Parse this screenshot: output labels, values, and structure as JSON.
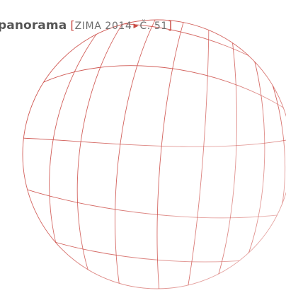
{
  "header": {
    "title": "panorama",
    "open_bracket": "[",
    "issue_season": "ZIMA 2014",
    "separator_icon": "triangle-right-icon",
    "issue_number": "Č. 51",
    "close_bracket": "]"
  },
  "colors": {
    "title": "#555555",
    "issue_text": "#6d6d6d",
    "accent": "#c94b44",
    "globe_lines": "#c85a55"
  },
  "globe": {
    "icon": "globe-wireframe-icon"
  }
}
